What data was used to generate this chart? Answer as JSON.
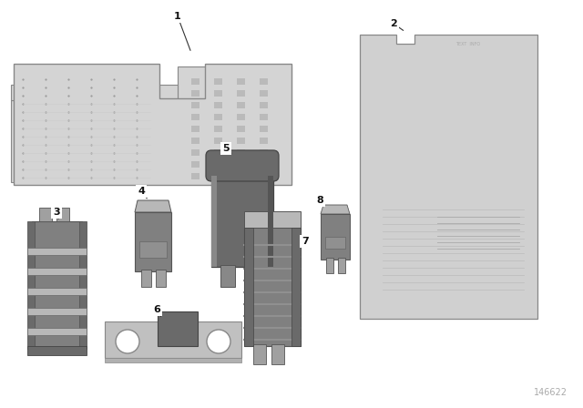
{
  "background_color": "#ffffff",
  "diagram_number": "146622",
  "paper_fill": "#d4d4d4",
  "paper_edge": "#888888",
  "fuse_dark": "#6a6a6a",
  "fuse_mid": "#808080",
  "fuse_light": "#a0a0a0",
  "fuse_lighter": "#b8b8b8",
  "metal_fill": "#c0c0c0",
  "metal_edge": "#888888",
  "label_color": "#111111",
  "line_color": "#333333"
}
